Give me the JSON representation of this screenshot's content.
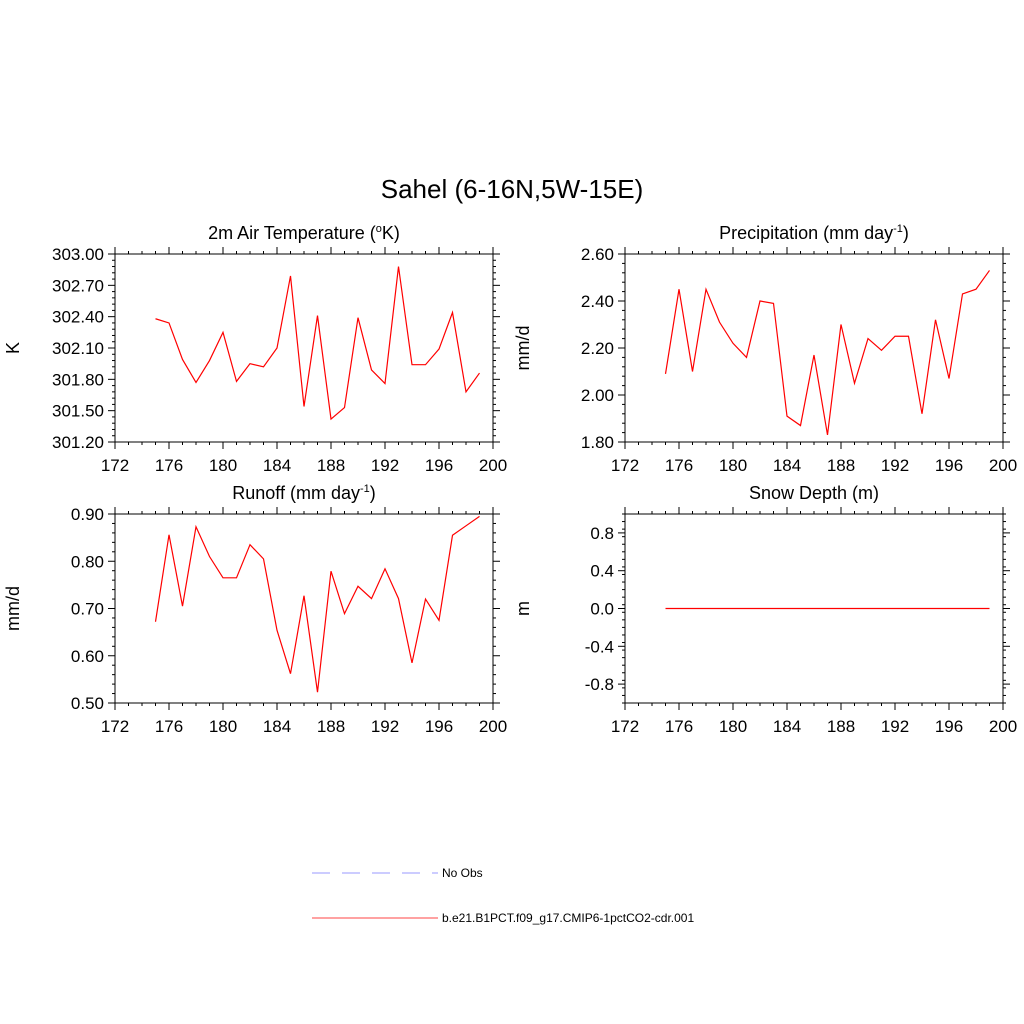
{
  "figure": {
    "title": "Sahel (6-16N,5W-15E)"
  },
  "legend": [
    {
      "label": "No Obs",
      "color": "#9999ff",
      "dash": true
    },
    {
      "label": "b.e21.B1PCT.f09_g17.CMIP6-1pctCO2-cdr.001",
      "color": "#ff4444",
      "dash": false
    }
  ],
  "chart_data": [
    {
      "id": "temp",
      "type": "line",
      "title_main": "2m Air Temperature (",
      "title_sup1": "o",
      "title_after_sup1": "K)",
      "ylabel": "K",
      "xlim": [
        172,
        200
      ],
      "ylim": [
        301.2,
        303.0
      ],
      "xticks": [
        172,
        176,
        180,
        184,
        188,
        192,
        196,
        200
      ],
      "yticks": [
        301.2,
        301.5,
        301.8,
        302.1,
        302.4,
        302.7,
        303.0
      ],
      "ytick_labels": [
        "301.20",
        "301.50",
        "301.80",
        "302.10",
        "302.40",
        "302.70",
        "303.00"
      ],
      "series": [
        {
          "color": "#ff0000",
          "x": [
            175,
            176,
            177,
            178,
            179,
            180,
            181,
            182,
            183,
            184,
            185,
            186,
            187,
            188,
            189,
            190,
            191,
            192,
            193,
            194,
            195,
            196,
            197,
            198,
            199
          ],
          "y": [
            302.38,
            302.34,
            301.99,
            301.77,
            301.98,
            302.25,
            301.78,
            301.95,
            301.92,
            302.1,
            302.79,
            301.54,
            302.41,
            301.42,
            301.53,
            302.39,
            301.89,
            301.76,
            302.88,
            301.94,
            301.94,
            302.09,
            302.44,
            301.68,
            301.86
          ]
        }
      ]
    },
    {
      "id": "precip",
      "type": "line",
      "title_main": "Precipitation (mm day",
      "title_sup1": "-1",
      "title_after_sup1": ")",
      "ylabel": "mm/d",
      "xlim": [
        172,
        200
      ],
      "ylim": [
        1.8,
        2.6
      ],
      "xticks": [
        172,
        176,
        180,
        184,
        188,
        192,
        196,
        200
      ],
      "yticks": [
        1.8,
        2.0,
        2.2,
        2.4,
        2.6
      ],
      "ytick_labels": [
        "1.80",
        "2.00",
        "2.20",
        "2.40",
        "2.60"
      ],
      "series": [
        {
          "color": "#ff0000",
          "x": [
            175,
            176,
            177,
            178,
            179,
            180,
            181,
            182,
            183,
            184,
            185,
            186,
            187,
            188,
            189,
            190,
            191,
            192,
            193,
            194,
            195,
            196,
            197,
            198,
            199
          ],
          "y": [
            2.09,
            2.45,
            2.1,
            2.45,
            2.31,
            2.22,
            2.16,
            2.4,
            2.39,
            1.91,
            1.87,
            2.17,
            1.83,
            2.3,
            2.05,
            2.24,
            2.19,
            2.25,
            2.25,
            1.92,
            2.32,
            2.07,
            2.43,
            2.45,
            2.53
          ]
        }
      ]
    },
    {
      "id": "runoff",
      "type": "line",
      "title_main": "Runoff (mm day",
      "title_sup1": "-1",
      "title_after_sup1": ")",
      "ylabel": "mm/d",
      "xlim": [
        172,
        200
      ],
      "ylim": [
        0.5,
        0.9
      ],
      "xticks": [
        172,
        176,
        180,
        184,
        188,
        192,
        196,
        200
      ],
      "yticks": [
        0.5,
        0.6,
        0.7,
        0.8,
        0.9
      ],
      "ytick_labels": [
        "0.50",
        "0.60",
        "0.70",
        "0.80",
        "0.90"
      ],
      "series": [
        {
          "color": "#ff0000",
          "x": [
            175,
            176,
            177,
            178,
            179,
            180,
            181,
            182,
            183,
            184,
            185,
            186,
            187,
            188,
            189,
            190,
            191,
            192,
            193,
            194,
            195,
            196,
            197,
            198,
            199
          ],
          "y": [
            0.672,
            0.856,
            0.705,
            0.873,
            0.81,
            0.765,
            0.765,
            0.835,
            0.805,
            0.654,
            0.562,
            0.727,
            0.523,
            0.779,
            0.689,
            0.747,
            0.721,
            0.784,
            0.721,
            0.585,
            0.72,
            0.675,
            0.855,
            0.875,
            0.895
          ]
        }
      ]
    },
    {
      "id": "snow",
      "type": "line",
      "title_main": "Snow Depth (m)",
      "title_sup1": "",
      "title_after_sup1": "",
      "ylabel": "m",
      "xlim": [
        172,
        200
      ],
      "ylim": [
        -1.0,
        1.0
      ],
      "xticks": [
        172,
        176,
        180,
        184,
        188,
        192,
        196,
        200
      ],
      "yticks": [
        -0.8,
        -0.4,
        0.0,
        0.4,
        0.8
      ],
      "ytick_labels": [
        "-0.8",
        "-0.4",
        "0.0",
        "0.4",
        "0.8"
      ],
      "series": [
        {
          "color": "#ff0000",
          "x": [
            175,
            176,
            177,
            178,
            179,
            180,
            181,
            182,
            183,
            184,
            185,
            186,
            187,
            188,
            189,
            190,
            191,
            192,
            193,
            194,
            195,
            196,
            197,
            198,
            199
          ],
          "y": [
            0,
            0,
            0,
            0,
            0,
            0,
            0,
            0,
            0,
            0,
            0,
            0,
            0,
            0,
            0,
            0,
            0,
            0,
            0,
            0,
            0,
            0,
            0,
            0,
            0
          ]
        }
      ]
    }
  ]
}
